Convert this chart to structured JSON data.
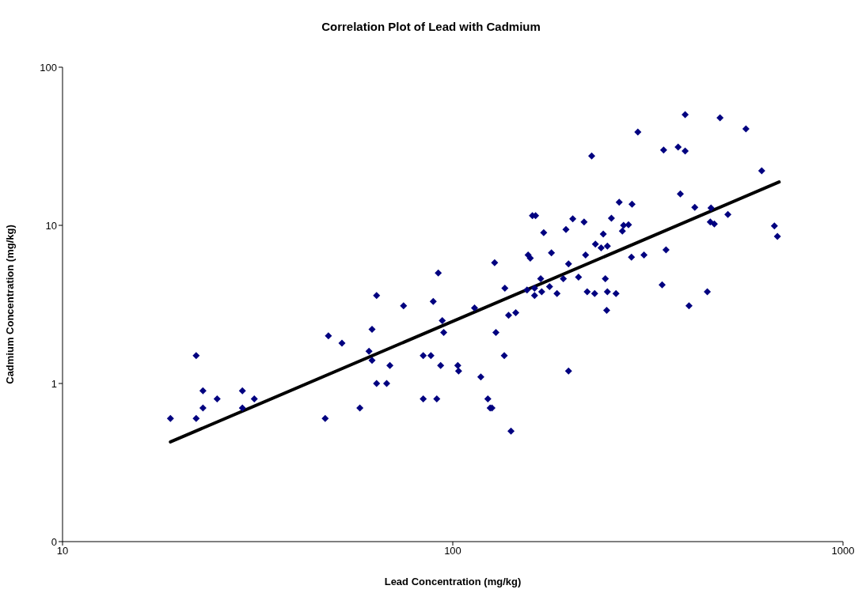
{
  "chart_data": {
    "type": "scatter",
    "title": "Correlation Plot of Lead with Cadmium",
    "xlabel": "Lead Concentration (mg/kg)",
    "ylabel": "Cadmium Concentration (mg/kg)",
    "log": "xy",
    "marker": "diamond",
    "xlim": [
      10,
      1000
    ],
    "xticks": [
      10,
      100,
      1000
    ],
    "ylim": [
      0.1,
      100
    ],
    "yticks": [
      {
        "value": 0.1,
        "label": "0"
      },
      1,
      10,
      100
    ],
    "series": [
      {
        "color": "#000080",
        "x": [
          18.9,
          22.0,
          22.0,
          22.9,
          22.9,
          24.9,
          28.9,
          28.9,
          31.0,
          48.0,
          52.0,
          57.8,
          61.0,
          62.1,
          62.1,
          63.8,
          63.8,
          67.7,
          69.0,
          74.8,
          84.0,
          84.0,
          87.9,
          89.1,
          91.8,
          91.0,
          93.1,
          94.0,
          94.8,
          103,
          103.5,
          113.7,
          118,
          123,
          124.7,
          126,
          129,
          136,
          135.5,
          139,
          145,
          141,
          156,
          158,
          162,
          162,
          169,
          179,
          155,
          160,
          163,
          185,
          192,
          195,
          198,
          203,
          217,
          219,
          221,
          227,
          231,
          232,
          243,
          246,
          249,
          249,
          255,
          262,
          267,
          272,
          274,
          282,
          287,
          288,
          298,
          344,
          347,
          352,
          378,
          383,
          394,
          394,
          403,
          417,
          449,
          457,
          468,
          484,
          507,
          564,
          619,
          667,
          679,
          459,
          47.1,
          128,
          171,
          168,
          177,
          198,
          210,
          240,
          248,
          309
        ],
        "values": [
          0.6,
          1.5,
          0.6,
          0.9,
          0.7,
          0.8,
          0.9,
          0.7,
          0.8,
          2.0,
          1.8,
          0.7,
          1.6,
          1.4,
          2.2,
          3.6,
          1.0,
          1.0,
          1.3,
          3.1,
          1.5,
          0.8,
          1.5,
          3.3,
          5.0,
          0.8,
          1.3,
          2.5,
          2.1,
          1.3,
          1.2,
          3.0,
          1.1,
          0.8,
          0.7,
          0.7,
          2.1,
          4.0,
          1.5,
          2.7,
          2.8,
          0.5,
          6.5,
          6.2,
          4.0,
          3.6,
          3.8,
          6.7,
          3.9,
          11.5,
          11.5,
          3.7,
          4.6,
          9.4,
          5.7,
          11.0,
          10.5,
          6.5,
          3.8,
          27.5,
          3.7,
          7.6,
          8.8,
          4.6,
          7.4,
          3.8,
          11.1,
          3.7,
          14.0,
          9.2,
          10.0,
          10.1,
          6.3,
          13.6,
          38.9,
          4.2,
          29.9,
          7.0,
          31.3,
          15.8,
          50.1,
          29.5,
          3.1,
          13.0,
          3.8,
          10.5,
          10.2,
          47.9,
          11.7,
          40.7,
          22.1,
          9.9,
          8.5,
          12.9,
          0.6,
          5.8,
          9.0,
          4.6,
          4.1,
          1.2,
          4.7,
          7.2,
          2.9,
          6.5
        ]
      },
      {
        "type": "line",
        "color": "#000000",
        "marker": "none",
        "x": [
          18.9,
          686
        ],
        "values": [
          0.427,
          18.8
        ]
      }
    ]
  }
}
